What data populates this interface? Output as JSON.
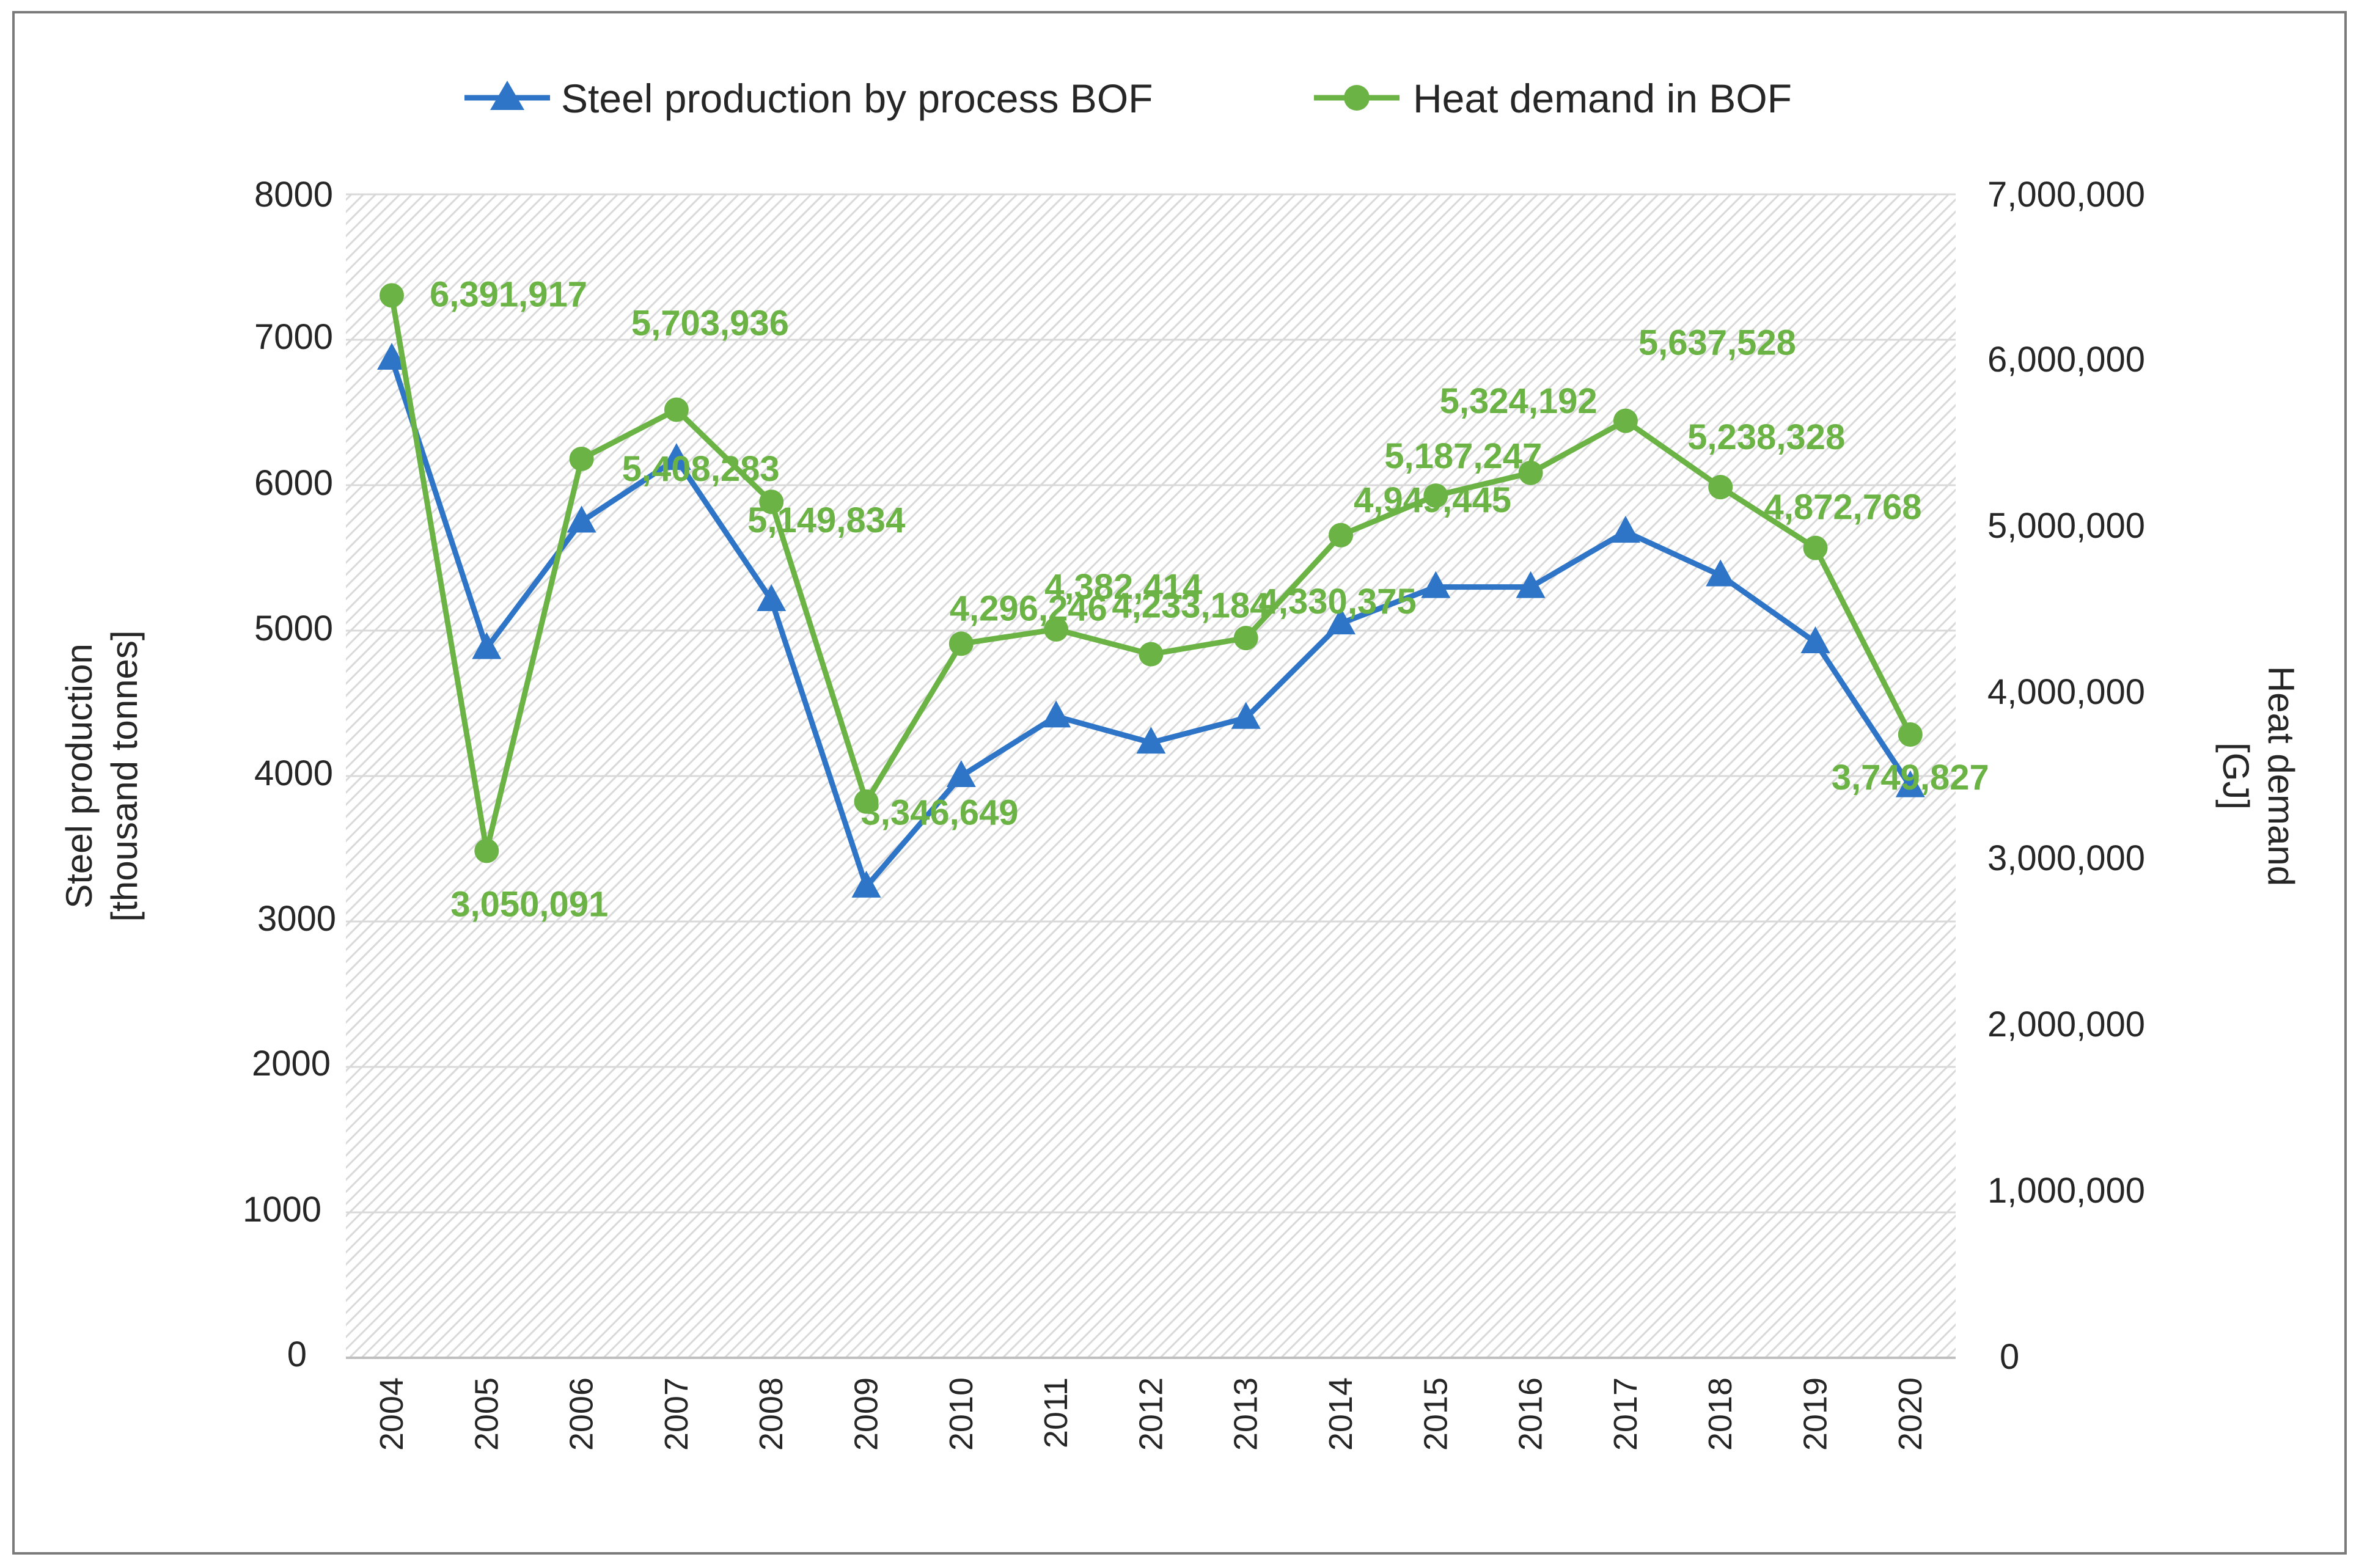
{
  "chart_data": {
    "type": "line",
    "title": "",
    "categories": [
      "2004",
      "2005",
      "2006",
      "2007",
      "2008",
      "2009",
      "2010",
      "2011",
      "2012",
      "2013",
      "2014",
      "2015",
      "2016",
      "2017",
      "2018",
      "2019",
      "2020"
    ],
    "series": [
      {
        "name": "Steel production by process BOF",
        "axis": "left",
        "color": "#2e75c7",
        "marker": "triangle",
        "values": [
          6870,
          4880,
          5750,
          6180,
          5210,
          3240,
          4000,
          4410,
          4230,
          4400,
          5050,
          5300,
          5300,
          5680,
          5380,
          4920,
          3930
        ]
      },
      {
        "name": "Heat demand in BOF",
        "axis": "right",
        "color": "#6bb345",
        "marker": "circle",
        "values": [
          6391917,
          3050091,
          5408283,
          5703936,
          5149834,
          3346649,
          4296246,
          4382414,
          4233184,
          4330375,
          4949445,
          5187247,
          5324192,
          5637528,
          5238328,
          4872768,
          3749827
        ],
        "labels": [
          "6,391,917",
          "3,050,091",
          "5,408,283",
          "5,703,936",
          "5,149,834",
          "3,346,649",
          "4,296,246",
          "4,382,414",
          "4,233,184",
          "4,330,375",
          "4,949,445",
          "5,187,247",
          "5,324,192",
          "5,637,528",
          "5,238,328",
          "4,872,768",
          "3,749,827"
        ]
      }
    ],
    "y_left": {
      "label_line1": "Steel production",
      "label_line2": "[thousand tonnes]",
      "range": [
        0,
        8000
      ],
      "ticks": [
        "0",
        "1000",
        "2000",
        "3000",
        "4000",
        "5000",
        "6000",
        "7000",
        "8000"
      ]
    },
    "y_right": {
      "label_line1": "Heat demand",
      "label_line2": "[GJ]",
      "range": [
        0,
        7000000
      ],
      "ticks": [
        "0",
        "1,000,000",
        "2,000,000",
        "3,000,000",
        "4,000,000",
        "5,000,000",
        "6,000,000",
        "7,000,000"
      ]
    },
    "legend_position": "top",
    "grid": true
  }
}
